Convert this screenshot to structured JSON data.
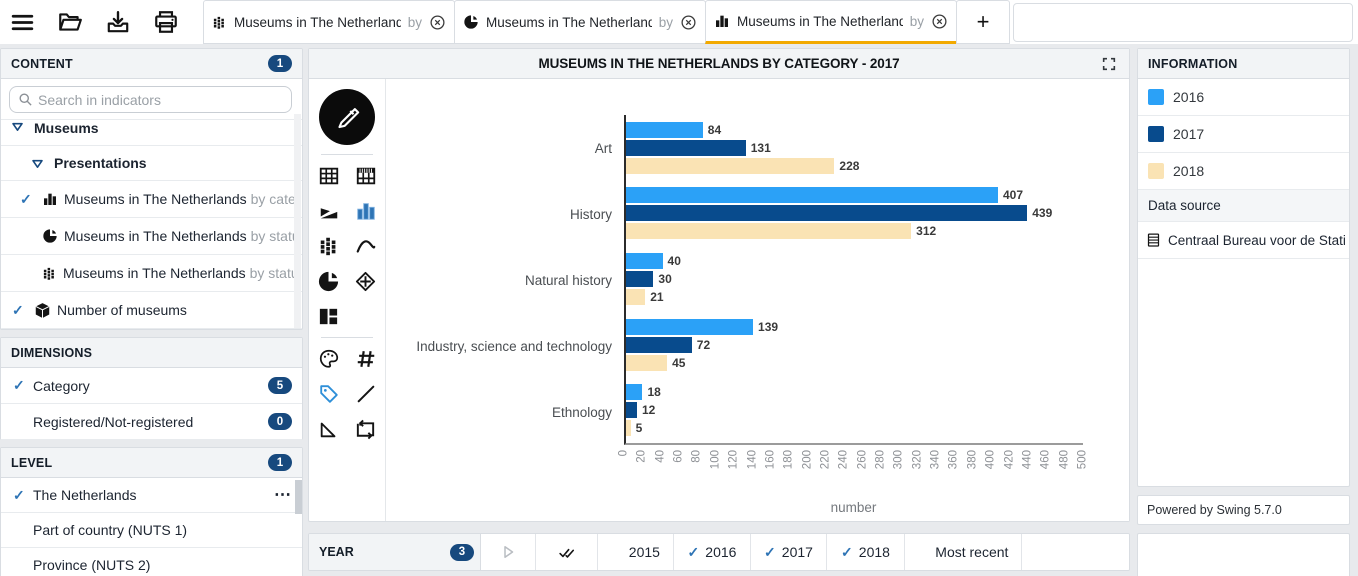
{
  "colors": {
    "accent_orange": "#f2a900",
    "badge_navy": "#17497e",
    "check_blue": "#2e74b5",
    "series_2016": "#2ba1f7",
    "series_2017": "#084b8d",
    "series_2018": "#fae3b4"
  },
  "topbar": {
    "icons": [
      "menu-icon",
      "open-folder-icon",
      "download-icon",
      "print-icon",
      "share-icon"
    ],
    "tabs": [
      {
        "icon": "grid-dots-icon",
        "title": "Museums in The Netherlands",
        "by": "by",
        "active": false
      },
      {
        "icon": "pie-chart-icon",
        "title": "Museums in The Netherlands",
        "by": "by",
        "active": false
      },
      {
        "icon": "bar-chart-icon",
        "title": "Museums in The Netherlands",
        "by": "by",
        "active": true
      }
    ],
    "add_label": "+"
  },
  "sidebar": {
    "content": {
      "title": "CONTENT",
      "badge": "1",
      "search_placeholder": "Search in indicators",
      "folders": [
        {
          "label": "Museums"
        },
        {
          "label": "Presentations"
        }
      ],
      "items": [
        {
          "icon": "bar-chart-icon",
          "label": "Museums in The Netherlands",
          "suffix": "by cate",
          "checked": true
        },
        {
          "icon": "pie-chart-icon",
          "label": "Museums in The Netherlands",
          "suffix": "by statu",
          "checked": false
        },
        {
          "icon": "grid-dots-icon",
          "label": "Museums in The Netherlands",
          "suffix": "by statu",
          "checked": false
        },
        {
          "icon": "cube-icon",
          "label": "Number of museums",
          "suffix": "",
          "checked": true
        }
      ]
    },
    "dimensions": {
      "title": "DIMENSIONS",
      "items": [
        {
          "label": "Category",
          "badge": "5",
          "checked": true
        },
        {
          "label": "Registered/Not-registered",
          "badge": "0",
          "checked": false
        }
      ]
    },
    "level": {
      "title": "LEVEL",
      "badge": "1",
      "more_label": "⋯",
      "items": [
        {
          "label": "The Netherlands",
          "checked": true
        },
        {
          "label": "Part of country (NUTS 1)",
          "checked": false
        },
        {
          "label": "Province (NUTS 2)",
          "checked": false
        }
      ]
    }
  },
  "chart_panel": {
    "title": "MUSEUMS IN THE NETHERLANDS BY CATEGORY - 2017"
  },
  "chart_data": {
    "type": "bar",
    "orientation": "horizontal",
    "title": "MUSEUMS IN THE NETHERLANDS BY CATEGORY - 2017",
    "categories": [
      "Art",
      "History",
      "Natural history",
      "Industry, science and technology",
      "Ethnology"
    ],
    "series": [
      {
        "name": "2016",
        "color": "#2ba1f7",
        "values": [
          84,
          407,
          40,
          139,
          18
        ]
      },
      {
        "name": "2017",
        "color": "#084b8d",
        "values": [
          131,
          439,
          30,
          72,
          12
        ]
      },
      {
        "name": "2018",
        "color": "#fae3b4",
        "values": [
          228,
          312,
          21,
          45,
          5
        ]
      }
    ],
    "xlabel": "number",
    "ylabel": "",
    "xlim": [
      0,
      500
    ],
    "xtick_step": 20,
    "grid": false,
    "value_labels": true,
    "legend_position": "right-panel"
  },
  "info_panel": {
    "title": "INFORMATION",
    "legend": [
      {
        "label": "2016",
        "color": "#2ba1f7"
      },
      {
        "label": "2017",
        "color": "#084b8d"
      },
      {
        "label": "2018",
        "color": "#fae3b4"
      }
    ],
    "data_source_label": "Data source",
    "data_source": "Centraal Bureau voor de Stati",
    "powered_by": "Powered by Swing 5.7.0"
  },
  "year_bar": {
    "title": "YEAR",
    "badge": "3",
    "options": [
      {
        "label": "2015",
        "checked": false
      },
      {
        "label": "2016",
        "checked": true
      },
      {
        "label": "2017",
        "checked": true
      },
      {
        "label": "2018",
        "checked": true
      },
      {
        "label": "Most recent",
        "checked": false
      }
    ]
  }
}
